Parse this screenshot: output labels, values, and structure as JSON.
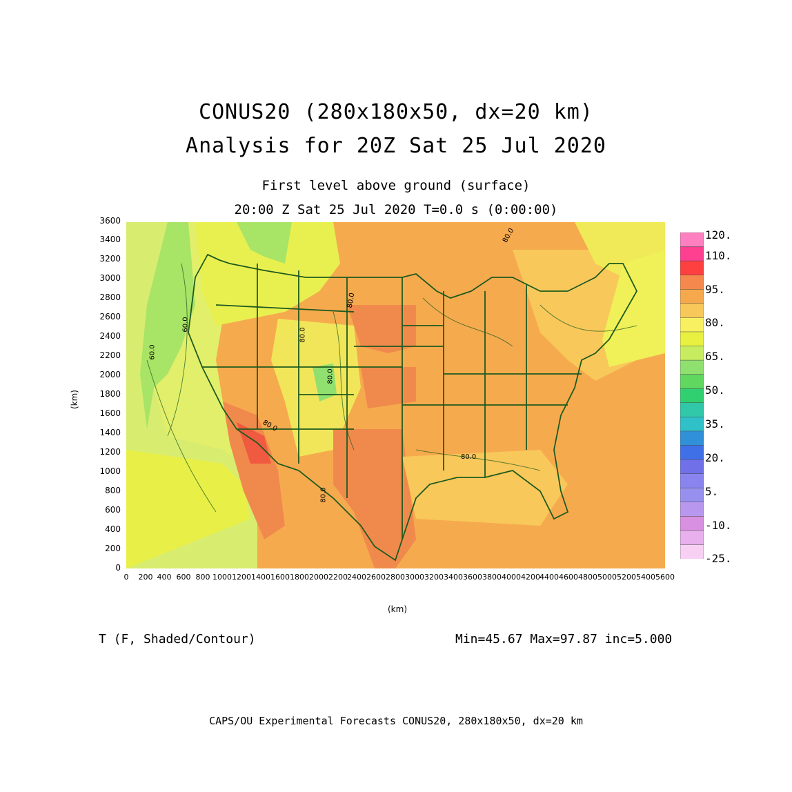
{
  "header": {
    "title_line1": "CONUS20 (280x180x50, dx=20 km)",
    "title_line2": "Analysis for 20Z Sat 25 Jul 2020",
    "subtitle_line1": "First level above ground (surface)",
    "subtitle_line2": "20:00 Z Sat 25 Jul 2020    T=0.0 s (0:00:00)"
  },
  "axes": {
    "x_unit": "(km)",
    "y_unit": "(km)",
    "x_ticks": [
      "0",
      "200",
      "400",
      "600",
      "800",
      "1000",
      "1200",
      "1400",
      "1600",
      "1800",
      "2000",
      "2200",
      "2400",
      "2600",
      "2800",
      "3000",
      "3200",
      "3400",
      "3600",
      "3800",
      "4000",
      "4200",
      "4400",
      "4600",
      "4800",
      "5000",
      "5200",
      "5400",
      "5600"
    ],
    "y_ticks": [
      "0",
      "200",
      "400",
      "600",
      "800",
      "1000",
      "1200",
      "1400",
      "1600",
      "1800",
      "2000",
      "2200",
      "2400",
      "2600",
      "2800",
      "3000",
      "3200",
      "3400",
      "3600"
    ],
    "x_range_km": [
      0,
      5600
    ],
    "y_range_km": [
      0,
      3600
    ]
  },
  "legend": {
    "labels": [
      "120.",
      "110.",
      "95.",
      "80.",
      "65.",
      "50.",
      "35.",
      "20.",
      "5.",
      "-10.",
      "-25."
    ],
    "colors": [
      "#ff80c0",
      "#ff4090",
      "#ff4040",
      "#f5884c",
      "#f6a94c",
      "#f8c85a",
      "#f8f060",
      "#e8f040",
      "#c8ec60",
      "#90e070",
      "#60d860",
      "#30d070",
      "#30c8a8",
      "#30c0c8",
      "#3090d8",
      "#4070e8",
      "#7070e8",
      "#8a84ee",
      "#9890ee",
      "#b898ee",
      "#d890e0",
      "#e8b0ec",
      "#f8d0f4"
    ]
  },
  "map_contour_labels": [
    "60.0",
    "60.0",
    "80.0",
    "80.0",
    "80.0",
    "80.0",
    "80.0",
    "80.0",
    "80.0"
  ],
  "footer": {
    "variable": "T (F, Shaded/Contour)",
    "stats": "Min=45.67 Max=97.87 inc=5.000",
    "credit": "CAPS/OU Experimental Forecasts  CONUS20, 280x180x50, dx=20 km"
  }
}
